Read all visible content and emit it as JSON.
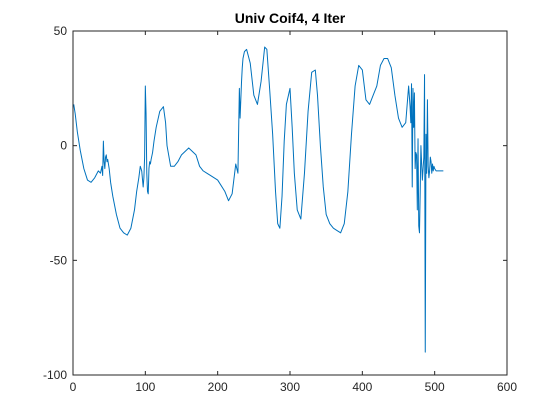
{
  "chart_data": {
    "type": "line",
    "title": "Univ Coif4, 4 Iter",
    "xlabel": "",
    "ylabel": "",
    "xlim": [
      0,
      600
    ],
    "ylim": [
      -100,
      50
    ],
    "xticks": [
      0,
      100,
      200,
      300,
      400,
      500,
      600
    ],
    "yticks": [
      -100,
      -50,
      0,
      50
    ],
    "grid": false,
    "legend": "none",
    "colors": {
      "line": "#0072BD",
      "axes": "#262626",
      "background": "#ffffff"
    },
    "series": [
      {
        "x": [
          1,
          3,
          6,
          10,
          15,
          20,
          25,
          30,
          35,
          38,
          40,
          41,
          42,
          43,
          44,
          45,
          46,
          47,
          48,
          50,
          52,
          55,
          60,
          65,
          70,
          75,
          80,
          85,
          88,
          91,
          93,
          95,
          97,
          98,
          99,
          100,
          101,
          102,
          103,
          104,
          105,
          106,
          107,
          108,
          110,
          112,
          115,
          120,
          125,
          128,
          130,
          135,
          140,
          145,
          150,
          160,
          170,
          175,
          180,
          185,
          190,
          200,
          210,
          215,
          220,
          225,
          228,
          230,
          231,
          232,
          233,
          234,
          235,
          237,
          240,
          245,
          250,
          255,
          260,
          265,
          268,
          272,
          276,
          280,
          283,
          286,
          289,
          292,
          295,
          300,
          303,
          306,
          310,
          315,
          320,
          325,
          330,
          335,
          338,
          342,
          346,
          350,
          355,
          360,
          365,
          370,
          375,
          380,
          385,
          390,
          395,
          400,
          405,
          410,
          415,
          420,
          425,
          430,
          435,
          440,
          445,
          450,
          455,
          460,
          464,
          466,
          467,
          468,
          469,
          470,
          471,
          472,
          473,
          474,
          475,
          476,
          477,
          478,
          479,
          480,
          481,
          482,
          483,
          484,
          485,
          486,
          487,
          488,
          489,
          490,
          491,
          492,
          493,
          494,
          495,
          496,
          497,
          498,
          499,
          500,
          502,
          505,
          510,
          512
        ],
        "y": [
          18,
          14,
          6,
          -2,
          -10,
          -15,
          -16,
          -14,
          -11,
          -12,
          -9,
          -13,
          2,
          -7,
          -10,
          -5,
          -4,
          -7,
          -6,
          -10,
          -16,
          -22,
          -30,
          -36,
          -38,
          -39,
          -36,
          -28,
          -20,
          -14,
          -9,
          -11,
          -18,
          -14,
          -5,
          26,
          14,
          -12,
          -20,
          -21,
          -10,
          -7,
          -8,
          -6,
          -3,
          2,
          8,
          15,
          17,
          10,
          0,
          -9,
          -9,
          -7,
          -4,
          -1,
          -4,
          -9,
          -11,
          -12,
          -13,
          -15,
          -20,
          -24,
          -21,
          -8,
          -12,
          25,
          12,
          20,
          28,
          34,
          38,
          41,
          42,
          36,
          22,
          18,
          28,
          43,
          42,
          24,
          5,
          -20,
          -34,
          -36,
          -22,
          2,
          18,
          25,
          8,
          -12,
          -28,
          -32,
          -12,
          15,
          32,
          33,
          22,
          0,
          -18,
          -30,
          -34,
          -36,
          -37,
          -38,
          -34,
          -20,
          5,
          26,
          35,
          33,
          20,
          18,
          22,
          26,
          35,
          38,
          38,
          34,
          22,
          12,
          8,
          10,
          26,
          17,
          10,
          27,
          -18,
          25,
          8,
          23,
          -10,
          -3,
          -4,
          -28,
          3,
          -35,
          -38,
          -20,
          0,
          -8,
          -15,
          -10,
          -5,
          31,
          -90,
          5,
          -12,
          20,
          -9,
          -14,
          -11,
          -5,
          -7,
          -12,
          -8,
          -11,
          -9,
          -10,
          -11,
          -11,
          -11,
          -11
        ]
      }
    ]
  }
}
